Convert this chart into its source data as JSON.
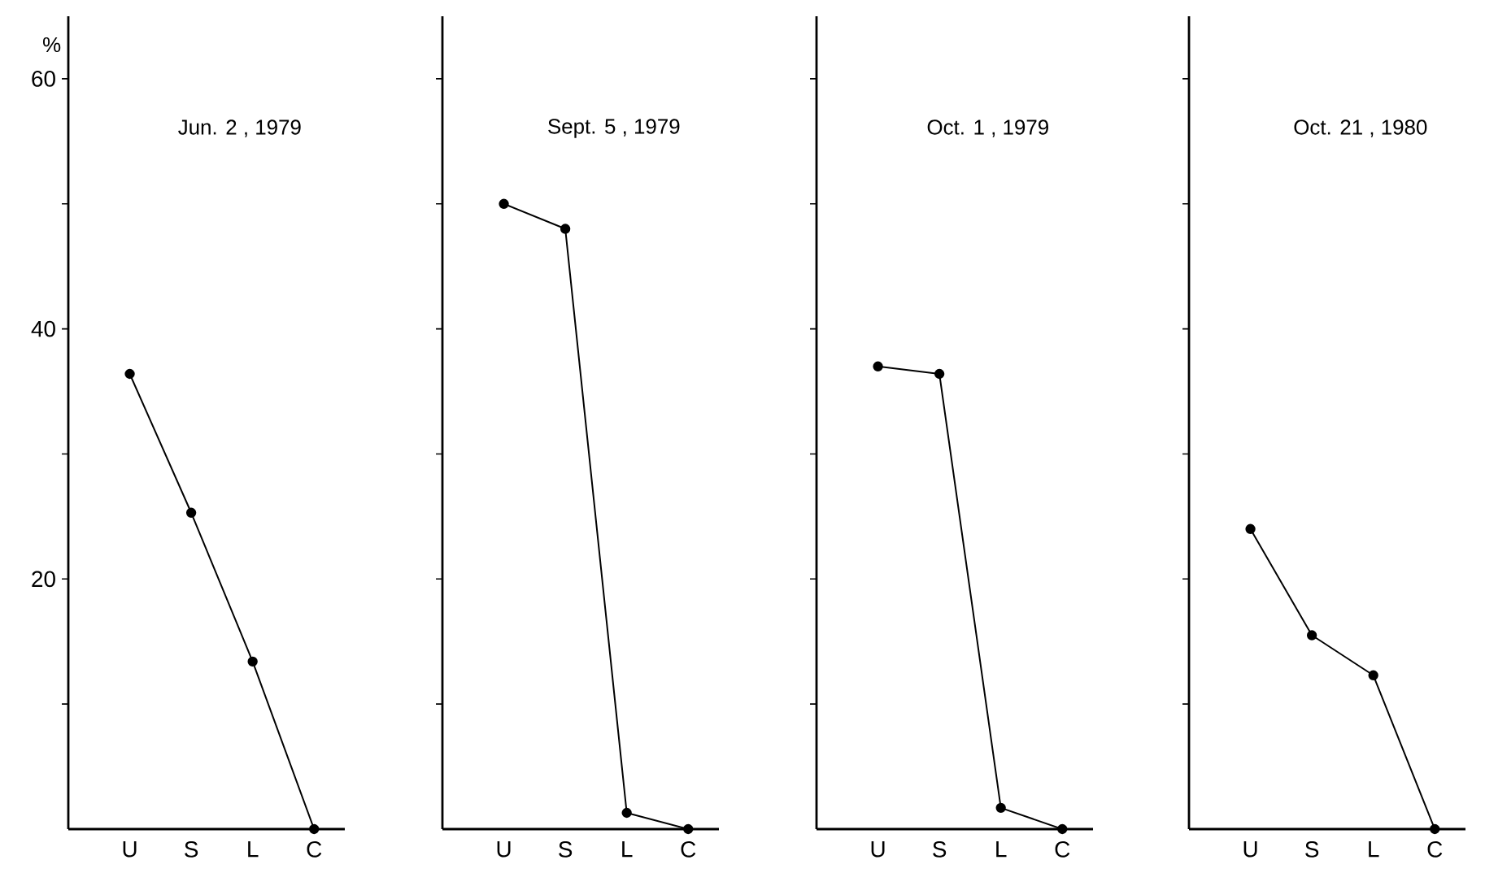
{
  "chart_data": [
    {
      "type": "line",
      "title": "Jun. 2 , 1979",
      "ylabel": "%",
      "categories": [
        "U",
        "S",
        "L",
        "C"
      ],
      "values": [
        36.4,
        25.3,
        13.4,
        0
      ],
      "color": "#000000",
      "marker": "circle",
      "ylim": [
        0,
        65
      ],
      "yticks": [
        {
          "value": 10,
          "label": null
        },
        20,
        {
          "value": 30,
          "label": null
        },
        40,
        {
          "value": 50,
          "label": null
        },
        60
      ]
    },
    {
      "type": "line",
      "title": "Sept. 5 , 1979",
      "categories": [
        "U",
        "S",
        "L",
        "C"
      ],
      "values": [
        50.0,
        48.0,
        1.3,
        0
      ],
      "color": "#000000",
      "marker": "circle",
      "ylim": [
        0,
        65
      ],
      "yticks": [
        10,
        20,
        30,
        40,
        50,
        60
      ],
      "tick_labels": "x"
    },
    {
      "type": "line",
      "title": "Oct. 1 , 1979",
      "categories": [
        "U",
        "S",
        "L",
        "C"
      ],
      "values": [
        37.0,
        36.4,
        1.7,
        0
      ],
      "color": "#000000",
      "marker": "circle",
      "ylim": [
        0,
        65
      ],
      "yticks": [
        10,
        20,
        30,
        40,
        50,
        60
      ],
      "tick_labels": "x"
    },
    {
      "type": "line",
      "title": "Oct. 21 , 1980",
      "categories": [
        "U",
        "S",
        "L",
        "C"
      ],
      "values": [
        24.0,
        15.5,
        12.3,
        0
      ],
      "color": "#000000",
      "marker": "circle",
      "ylim": [
        0,
        65
      ],
      "yticks": [
        10,
        20,
        30,
        40,
        50,
        60
      ],
      "tick_labels": "x"
    }
  ]
}
